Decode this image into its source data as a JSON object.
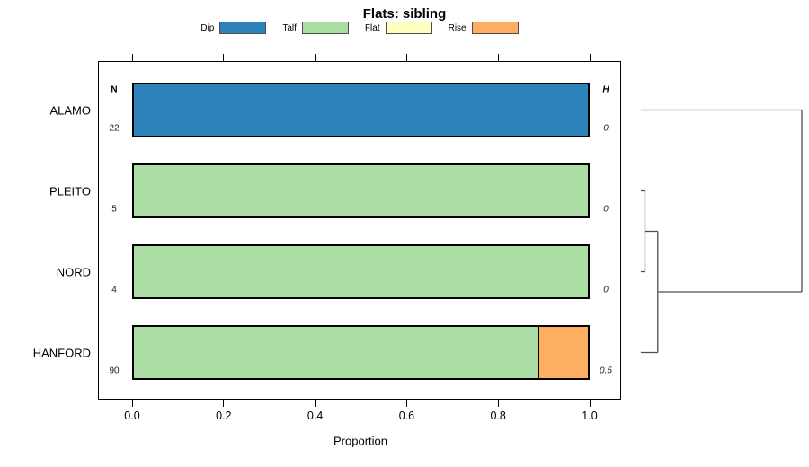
{
  "title": "Flats: sibling",
  "legend": {
    "items": [
      {
        "label": "Dip",
        "color": "#2b83ba"
      },
      {
        "label": "Talf",
        "color": "#abdda4"
      },
      {
        "label": "Flat",
        "color": "#ffffbf"
      },
      {
        "label": "Rise",
        "color": "#fdae61"
      }
    ]
  },
  "chart_data": {
    "type": "bar",
    "orientation": "horizontal",
    "stacked": true,
    "title": "Flats: sibling",
    "xlabel": "Proportion",
    "xlim": [
      0,
      1
    ],
    "xtick_labels": [
      "0.0",
      "0.2",
      "0.4",
      "0.6",
      "0.8",
      "1.0"
    ],
    "categories": [
      "ALAMO",
      "PLEITO",
      "NORD",
      "HANFORD"
    ],
    "n_column": {
      "header": "N",
      "values": [
        "22",
        "5",
        "4",
        "90"
      ]
    },
    "h_column": {
      "header": "H",
      "values": [
        "0",
        "0",
        "0",
        "0.5"
      ]
    },
    "series": [
      {
        "name": "Dip",
        "color": "#2b83ba",
        "values": [
          1,
          0,
          0,
          0
        ]
      },
      {
        "name": "Talf",
        "color": "#abdda4",
        "values": [
          0,
          1,
          1,
          0.889
        ]
      },
      {
        "name": "Flat",
        "color": "#ffffbf",
        "values": [
          0,
          0,
          0,
          0
        ]
      },
      {
        "name": "Rise",
        "color": "#fdae61",
        "values": [
          0,
          0,
          0,
          0.111
        ]
      }
    ],
    "dendrogram": {
      "leaf_order": [
        "ALAMO",
        "PLEITO",
        "NORD",
        "HANFORD"
      ],
      "merges": [
        {
          "a": "PLEITO",
          "b": "NORD",
          "relative_height": 0.025
        },
        {
          "a": "merge_0",
          "b": "HANFORD",
          "relative_height": 0.105
        },
        {
          "a": "merge_1",
          "b": "ALAMO",
          "relative_height": 1.0
        }
      ],
      "line_color": "#4d4d4d"
    },
    "colors": {
      "bar_border": "#000000",
      "axis": "#000000"
    }
  }
}
